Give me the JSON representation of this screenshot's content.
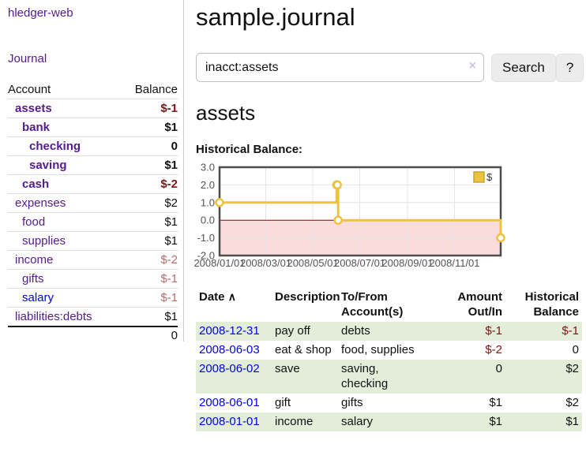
{
  "sidebar": {
    "brand": "hledger-web",
    "nav_journal": "Journal",
    "accounts_header": {
      "account": "Account",
      "balance": "Balance"
    },
    "accounts": [
      {
        "name": "assets",
        "balance": "$-1",
        "depth": 1,
        "bold": true
      },
      {
        "name": "bank",
        "balance": "$1",
        "depth": 2,
        "bold": true
      },
      {
        "name": "checking",
        "balance": "0",
        "depth": 3,
        "bold": true
      },
      {
        "name": "saving",
        "balance": "$1",
        "depth": 3,
        "bold": true
      },
      {
        "name": "cash",
        "balance": "$-2",
        "depth": 2,
        "bold": true
      },
      {
        "name": "expenses",
        "balance": "$2",
        "depth": 1,
        "bold": false
      },
      {
        "name": "food",
        "balance": "$1",
        "depth": 2,
        "bold": false
      },
      {
        "name": "supplies",
        "balance": "$1",
        "depth": 2,
        "bold": false
      },
      {
        "name": "income",
        "balance": "$-2",
        "depth": 1,
        "bold": false
      },
      {
        "name": "gifts",
        "balance": "$-1",
        "depth": 2,
        "bold": false
      },
      {
        "name": "salary",
        "balance": "$-1",
        "depth": 2,
        "bold": false
      },
      {
        "name": "liabilities:debts",
        "balance": "$1",
        "depth": 1,
        "bold": false
      }
    ],
    "total": "0"
  },
  "header": {
    "title": "sample.journal"
  },
  "search": {
    "value": "inacct:assets",
    "clear_icon": "×",
    "search_label": "Search",
    "help_label": "?"
  },
  "account_page": {
    "heading": "assets",
    "chart_label": "Historical Balance:"
  },
  "chart_data": {
    "type": "line",
    "step": true,
    "title": "Historical Balance",
    "series": [
      {
        "name": "$",
        "color": "#edc240",
        "points": [
          [
            "2008-01-01",
            1
          ],
          [
            "2008-06-01",
            2
          ],
          [
            "2008-06-02",
            2
          ],
          [
            "2008-06-03",
            0
          ],
          [
            "2008-12-31",
            -1
          ]
        ]
      }
    ],
    "x_range": [
      "2008-01-01",
      "2008-12-31"
    ],
    "x_ticks": [
      "2008/01/01",
      "2008/03/01",
      "2008/05/01",
      "2008/07/01",
      "2008/09/01",
      "2008/11/01"
    ],
    "y_ticks": [
      3.0,
      2.0,
      1.0,
      0.0,
      -1.0,
      -2.0
    ],
    "ylim": [
      -2,
      3
    ],
    "grid": true,
    "legend": {
      "label": "$",
      "position": "top-right"
    },
    "colors": {
      "line": "#edc240",
      "marker_fill": "#ffffff",
      "negative_region": "#fbdcdc",
      "zero_line": "#8b0000",
      "grid": "#e4e4e4",
      "border": "#4d4d4d",
      "axis_text": "#545454",
      "legend_swatch_border": "#c9a42f"
    }
  },
  "register_table": {
    "headers": {
      "date": "Date",
      "sort_icon": "∧",
      "description": "Description",
      "accounts": "To/From Account(s)",
      "amount": "Amount Out/In",
      "balance": "Historical Balance"
    },
    "rows": [
      {
        "date": "2008-12-31",
        "description": "pay off",
        "accounts": "debts",
        "amount": "$-1",
        "balance": "$-1"
      },
      {
        "date": "2008-06-03",
        "description": "eat & shop",
        "accounts": "food, supplies",
        "amount": "$-2",
        "balance": "0"
      },
      {
        "date": "2008-06-02",
        "description": "save",
        "accounts": "saving, checking",
        "amount": "0",
        "balance": "$2"
      },
      {
        "date": "2008-06-01",
        "description": "gift",
        "accounts": "gifts",
        "amount": "$1",
        "balance": "$2"
      },
      {
        "date": "2008-01-01",
        "description": "income",
        "accounts": "salary",
        "amount": "$1",
        "balance": "$1"
      }
    ]
  }
}
